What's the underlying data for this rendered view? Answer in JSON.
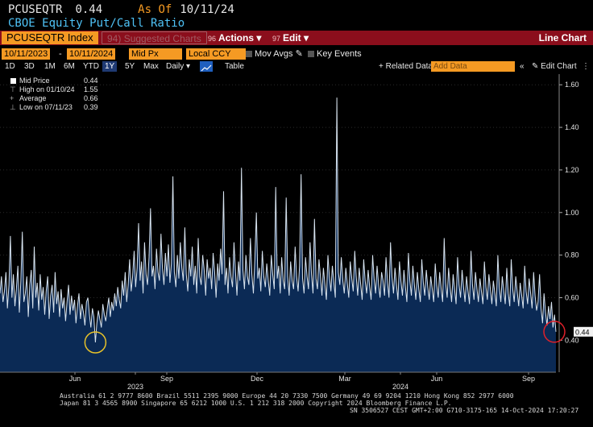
{
  "header": {
    "ticker": "PCUSEQTR",
    "last_value": "0.44",
    "asof_label": "As Of",
    "asof_date": "10/11/24",
    "subtitle": "CBOE Equity Put/Call Ratio"
  },
  "toolbar": {
    "security": "PCUSEQTR Index",
    "suggested_num": "94",
    "suggested": "Suggested Charts",
    "actions_num": "96",
    "actions": "Actions",
    "edit_num": "97",
    "edit": "Edit",
    "chart_type": "Line Chart"
  },
  "inputs": {
    "start_date": "10/11/2023",
    "end_date": "10/11/2024",
    "field": "Mid Px",
    "currency": "Local CCY",
    "mov_avgs": "Mov Avgs",
    "key_events": "Key Events"
  },
  "periods": {
    "items": [
      "1D",
      "3D",
      "1M",
      "6M",
      "YTD",
      "1Y",
      "5Y",
      "Max"
    ],
    "selected": "1Y",
    "frequency": "Daily",
    "table": "Table",
    "related": "+ Related Data",
    "add_data_placeholder": "Add Data",
    "edit_chart": "Edit Chart"
  },
  "legend": [
    {
      "label": "Mid Price",
      "value": "0.44"
    },
    {
      "label": "High on 01/10/24",
      "value": "1.55"
    },
    {
      "label": "Average",
      "value": "0.66"
    },
    {
      "label": "Low on 07/11/23",
      "value": "0.39"
    }
  ],
  "footer": {
    "line1": "Australia 61 2 9777 8600 Brazil 5511 2395 9000 Europe 44 20 7330 7500 Germany 49 69 9204 1210 Hong Kong 852 2977 6000",
    "line2": "Japan 81 3 4565 8900       Singapore 65 6212 1000       U.S. 1 212 318 2000         Copyright 2024 Bloomberg Finance L.P.",
    "line3": "SN 3506527 CEST GMT+2:00 G710-3175-165 14-Oct-2024 17:20:27"
  },
  "colors": {
    "line": "#d8e4f0",
    "fill": "#0b2a55",
    "accent": "#f59a23",
    "bar": "#8b0e1c",
    "circle_low": "#e8c22a",
    "circle_last": "#e0202a"
  },
  "chart_data": {
    "type": "area",
    "x_tick_labels": [
      "Jun",
      "2023",
      "Sep",
      "Dec",
      "Mar",
      "2024",
      "Jun",
      "Sep"
    ],
    "y_ticks": [
      0.4,
      0.6,
      0.8,
      1.0,
      1.2,
      1.4,
      1.6
    ],
    "y_tick_labels": [
      "0.40",
      "0.60",
      "0.80",
      "1.00",
      "1.20",
      "1.40",
      "1.60"
    ],
    "ylim": [
      0.25,
      1.65
    ],
    "last_label": "0.44",
    "series": [
      {
        "name": "Mid Price",
        "values": [
          0.62,
          0.7,
          0.58,
          0.63,
          0.72,
          0.55,
          0.66,
          0.89,
          0.6,
          0.71,
          0.56,
          0.64,
          0.75,
          0.53,
          0.68,
          0.91,
          0.58,
          0.62,
          0.7,
          0.51,
          0.66,
          0.73,
          0.55,
          0.84,
          0.6,
          0.67,
          0.54,
          0.71,
          0.59,
          0.65,
          0.52,
          0.63,
          0.7,
          0.5,
          0.61,
          0.66,
          0.53,
          0.72,
          0.57,
          0.63,
          0.51,
          0.64,
          0.55,
          0.6,
          0.49,
          0.58,
          0.66,
          0.52,
          0.61,
          0.54,
          0.59,
          0.48,
          0.56,
          0.62,
          0.5,
          0.57,
          0.53,
          0.47,
          0.58,
          0.6,
          0.52,
          0.46,
          0.55,
          0.51,
          0.39,
          0.48,
          0.54,
          0.5,
          0.46,
          0.57,
          0.52,
          0.49,
          0.55,
          0.6,
          0.51,
          0.58,
          0.54,
          0.62,
          0.56,
          0.65,
          0.59,
          0.55,
          0.68,
          0.61,
          0.72,
          0.58,
          0.66,
          0.78,
          0.63,
          0.7,
          0.82,
          0.65,
          0.74,
          0.95,
          0.68,
          0.77,
          0.62,
          0.86,
          0.71,
          0.66,
          0.79,
          1.02,
          0.7,
          0.75,
          0.64,
          0.83,
          0.72,
          0.68,
          0.9,
          0.74,
          0.66,
          0.81,
          0.7,
          0.85,
          0.67,
          0.76,
          1.17,
          0.72,
          0.65,
          0.8,
          0.69,
          0.86,
          0.74,
          0.68,
          0.93,
          0.71,
          0.63,
          0.78,
          0.7,
          0.84,
          0.66,
          0.75,
          0.62,
          0.88,
          0.7,
          0.66,
          0.8,
          0.73,
          0.61,
          0.78,
          0.69,
          0.74,
          0.64,
          0.81,
          0.72,
          0.6,
          0.76,
          0.68,
          0.83,
          0.71,
          1.1,
          0.66,
          0.74,
          0.62,
          0.79,
          0.7,
          0.65,
          0.86,
          0.72,
          0.61,
          0.77,
          0.68,
          1.21,
          0.73,
          0.64,
          0.8,
          0.7,
          0.66,
          0.88,
          0.71,
          0.62,
          0.78,
          1.0,
          0.69,
          0.74,
          0.63,
          0.82,
          0.7,
          0.65,
          0.76,
          0.68,
          0.61,
          0.8,
          0.71,
          0.64,
          1.12,
          0.69,
          0.75,
          0.62,
          0.79,
          0.68,
          0.64,
          1.07,
          0.7,
          0.61,
          0.77,
          0.68,
          0.64,
          0.84,
          0.7,
          0.63,
          0.75,
          1.18,
          0.69,
          0.62,
          0.79,
          0.7,
          0.64,
          0.86,
          0.71,
          0.62,
          0.97,
          0.69,
          0.64,
          0.78,
          0.7,
          0.61,
          0.74,
          0.66,
          0.59,
          0.8,
          0.7,
          0.63,
          0.75,
          0.67,
          0.6,
          1.54,
          0.72,
          0.66,
          0.79,
          0.68,
          0.62,
          0.74,
          0.67,
          0.6,
          0.77,
          0.69,
          0.63,
          0.82,
          0.7,
          0.61,
          0.74,
          0.66,
          0.59,
          0.78,
          0.68,
          0.62,
          0.73,
          0.65,
          0.59,
          0.8,
          0.69,
          0.62,
          0.75,
          0.66,
          0.6,
          0.72,
          0.68,
          0.61,
          0.79,
          0.67,
          0.6,
          0.86,
          0.7,
          0.62,
          0.74,
          0.66,
          0.59,
          0.77,
          0.68,
          0.61,
          0.73,
          0.65,
          0.58,
          0.81,
          0.68,
          0.61,
          0.75,
          0.66,
          0.59,
          0.72,
          0.64,
          0.58,
          0.78,
          0.67,
          0.61,
          0.73,
          0.65,
          0.59,
          0.7,
          0.64,
          0.58,
          0.76,
          0.66,
          0.6,
          0.72,
          0.64,
          0.58,
          0.88,
          0.67,
          0.6,
          0.74,
          0.65,
          0.58,
          0.71,
          0.64,
          0.57,
          0.79,
          0.66,
          0.6,
          0.73,
          0.65,
          0.58,
          0.7,
          0.63,
          0.57,
          0.82,
          0.66,
          0.59,
          0.72,
          0.64,
          0.58,
          0.69,
          0.63,
          0.57,
          0.77,
          0.65,
          0.59,
          0.71,
          0.64,
          0.57,
          0.68,
          0.62,
          0.56,
          0.8,
          0.65,
          0.58,
          0.7,
          0.63,
          0.57,
          0.74,
          0.62,
          0.56,
          0.78,
          0.64,
          0.58,
          0.7,
          0.63,
          0.56,
          0.67,
          0.61,
          0.55,
          0.75,
          0.63,
          0.57,
          0.69,
          0.62,
          0.55,
          0.72,
          0.61,
          0.54,
          0.58,
          0.71,
          0.55,
          0.48,
          0.62,
          0.53,
          0.47,
          0.56,
          0.5,
          0.58,
          0.46,
          0.52,
          0.44
        ]
      }
    ]
  }
}
